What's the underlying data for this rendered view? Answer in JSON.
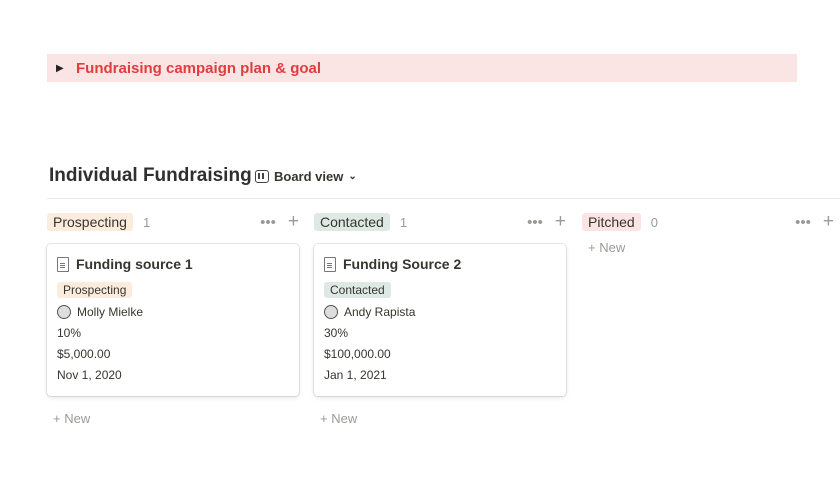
{
  "toggle": {
    "label": "Fundraising campaign plan & goal",
    "color": "#e03e3e",
    "bg": "#fbe4e4"
  },
  "database": {
    "title": "Individual Fundraising",
    "view": "Board view"
  },
  "new_label": "+ New",
  "groups": [
    {
      "label": "Prospecting",
      "count": "1",
      "color": "#fbecdd",
      "cards": [
        {
          "name": "Funding source 1",
          "status": "Prospecting",
          "person": "Molly Mielke",
          "probability": "10%",
          "amount": "$5,000.00",
          "date": "Nov 1, 2020"
        }
      ]
    },
    {
      "label": "Contacted",
      "count": "1",
      "color": "#dfe9e4",
      "cards": [
        {
          "name": "Funding Source 2",
          "status": "Contacted",
          "person": "Andy Rapista",
          "probability": "30%",
          "amount": "$100,000.00",
          "date": "Jan 1, 2021"
        }
      ]
    },
    {
      "label": "Pitched",
      "count": "0",
      "color": "#fbe4e4",
      "cards": []
    }
  ]
}
